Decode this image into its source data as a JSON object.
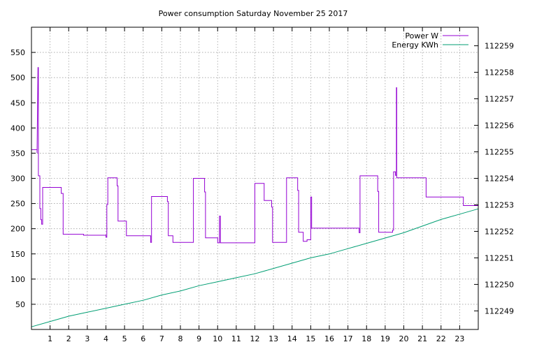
{
  "chart_data": {
    "type": "line",
    "title": "Power consumption Saturday November 25 2017",
    "xlabel": "",
    "ylabel": "",
    "y2label": "",
    "x_ticks": [
      1,
      2,
      3,
      4,
      5,
      6,
      7,
      8,
      9,
      10,
      11,
      12,
      13,
      14,
      15,
      16,
      17,
      18,
      19,
      20,
      21,
      22,
      23
    ],
    "xlim": [
      0,
      24
    ],
    "y_ticks": [
      50,
      100,
      150,
      200,
      250,
      300,
      350,
      400,
      450,
      500,
      550
    ],
    "ylim": [
      0,
      600
    ],
    "y2_ticks": [
      112249,
      112250,
      112251,
      112252,
      112253,
      112254,
      112255,
      112256,
      112257,
      112258,
      112259
    ],
    "y2lim": [
      112248.3,
      112259.7
    ],
    "grid": true,
    "legend_position": "top-right",
    "series": [
      {
        "name": "Power W",
        "axis": "left",
        "color": "#9400d3",
        "step": true,
        "points": [
          [
            0.0,
            357
          ],
          [
            0.3,
            357
          ],
          [
            0.3,
            350
          ],
          [
            0.35,
            520
          ],
          [
            0.37,
            520
          ],
          [
            0.37,
            305
          ],
          [
            0.45,
            305
          ],
          [
            0.45,
            240
          ],
          [
            0.5,
            240
          ],
          [
            0.5,
            218
          ],
          [
            0.55,
            218
          ],
          [
            0.55,
            209
          ],
          [
            0.6,
            209
          ],
          [
            0.6,
            282
          ],
          [
            1.6,
            282
          ],
          [
            1.6,
            270
          ],
          [
            1.7,
            270
          ],
          [
            1.7,
            189
          ],
          [
            2.8,
            189
          ],
          [
            2.8,
            187
          ],
          [
            4.0,
            187
          ],
          [
            4.0,
            183
          ],
          [
            4.05,
            183
          ],
          [
            4.05,
            248
          ],
          [
            4.1,
            248
          ],
          [
            4.1,
            301
          ],
          [
            4.6,
            301
          ],
          [
            4.6,
            285
          ],
          [
            4.65,
            285
          ],
          [
            4.65,
            215
          ],
          [
            5.1,
            215
          ],
          [
            5.1,
            186
          ],
          [
            6.4,
            186
          ],
          [
            6.4,
            173
          ],
          [
            6.45,
            173
          ],
          [
            6.45,
            264
          ],
          [
            7.3,
            264
          ],
          [
            7.3,
            254
          ],
          [
            7.35,
            254
          ],
          [
            7.35,
            186
          ],
          [
            7.6,
            186
          ],
          [
            7.6,
            173
          ],
          [
            8.7,
            173
          ],
          [
            8.7,
            300
          ],
          [
            9.3,
            300
          ],
          [
            9.3,
            273
          ],
          [
            9.35,
            273
          ],
          [
            9.35,
            182
          ],
          [
            10.0,
            182
          ],
          [
            10.0,
            172
          ],
          [
            10.1,
            172
          ],
          [
            10.1,
            225
          ],
          [
            10.15,
            225
          ],
          [
            10.15,
            172
          ],
          [
            12.0,
            172
          ],
          [
            12.0,
            290
          ],
          [
            12.5,
            290
          ],
          [
            12.5,
            256
          ],
          [
            12.9,
            256
          ],
          [
            12.9,
            243
          ],
          [
            12.95,
            243
          ],
          [
            12.95,
            173
          ],
          [
            13.7,
            173
          ],
          [
            13.7,
            301
          ],
          [
            14.3,
            301
          ],
          [
            14.3,
            276
          ],
          [
            14.35,
            276
          ],
          [
            14.35,
            193
          ],
          [
            14.6,
            193
          ],
          [
            14.6,
            175
          ],
          [
            14.8,
            175
          ],
          [
            14.8,
            178
          ],
          [
            15.0,
            178
          ],
          [
            15.0,
            263
          ],
          [
            15.05,
            263
          ],
          [
            15.05,
            201
          ],
          [
            17.6,
            201
          ],
          [
            17.6,
            192
          ],
          [
            17.65,
            192
          ],
          [
            17.65,
            305
          ],
          [
            18.6,
            305
          ],
          [
            18.6,
            274
          ],
          [
            18.65,
            274
          ],
          [
            18.65,
            193
          ],
          [
            19.4,
            193
          ],
          [
            19.4,
            197
          ],
          [
            19.45,
            197
          ],
          [
            19.45,
            313
          ],
          [
            19.55,
            313
          ],
          [
            19.55,
            306
          ],
          [
            19.6,
            306
          ],
          [
            19.6,
            480
          ],
          [
            19.62,
            480
          ],
          [
            19.62,
            301
          ],
          [
            21.2,
            301
          ],
          [
            21.2,
            263
          ],
          [
            23.2,
            263
          ],
          [
            23.2,
            246
          ],
          [
            23.99,
            246
          ]
        ]
      },
      {
        "name": "Energy KWh",
        "axis": "right",
        "color": "#009e73",
        "step": false,
        "points": [
          [
            0.0,
            112248.4
          ],
          [
            1.0,
            112248.6
          ],
          [
            2.0,
            112248.8
          ],
          [
            3.0,
            112248.95
          ],
          [
            4.0,
            112249.1
          ],
          [
            5.0,
            112249.25
          ],
          [
            6.0,
            112249.4
          ],
          [
            7.0,
            112249.6
          ],
          [
            8.0,
            112249.75
          ],
          [
            9.0,
            112249.95
          ],
          [
            10.0,
            112250.1
          ],
          [
            11.0,
            112250.25
          ],
          [
            12.0,
            112250.4
          ],
          [
            13.0,
            112250.6
          ],
          [
            14.0,
            112250.8
          ],
          [
            15.0,
            112251.0
          ],
          [
            16.0,
            112251.15
          ],
          [
            17.0,
            112251.35
          ],
          [
            18.0,
            112251.55
          ],
          [
            19.0,
            112251.75
          ],
          [
            20.0,
            112251.95
          ],
          [
            21.0,
            112252.2
          ],
          [
            22.0,
            112252.45
          ],
          [
            23.0,
            112252.65
          ],
          [
            24.0,
            112252.85
          ]
        ]
      }
    ]
  }
}
